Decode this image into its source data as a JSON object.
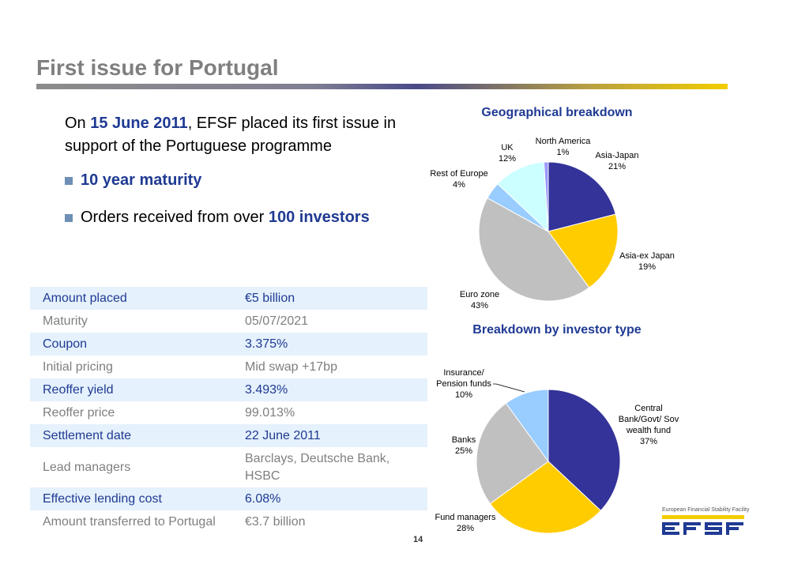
{
  "slide": {
    "title": "First issue for Portugal",
    "page_number": "14"
  },
  "intro": {
    "p1": "On ",
    "date": "15 June 2011",
    "p2": ", EFSF placed its first issue in support of the Portuguese programme"
  },
  "bullets": [
    {
      "plain": "",
      "bold": "10 year maturity"
    },
    {
      "plain": "Orders received from over ",
      "bold": "100 investors"
    }
  ],
  "terms": [
    {
      "label": "Amount placed",
      "value": "€5 billion"
    },
    {
      "label": "Maturity",
      "value": "05/07/2021"
    },
    {
      "label": "Coupon",
      "value": "3.375%"
    },
    {
      "label": "Initial pricing",
      "value": "Mid swap +17bp"
    },
    {
      "label": "Reoffer yield",
      "value": "3.493%"
    },
    {
      "label": "Reoffer price",
      "value": "99.013%"
    },
    {
      "label": "Settlement date",
      "value": "22 June 2011"
    },
    {
      "label": "Lead managers",
      "value": "Barclays, Deutsche Bank, HSBC"
    },
    {
      "label": "Effective lending cost",
      "value": "6.08%"
    },
    {
      "label": "Amount transferred to Portugal",
      "value": "€3.7 billion"
    }
  ],
  "logo": {
    "caption": "European Financial Stability Facility",
    "text": "EFSF"
  },
  "chart_data": [
    {
      "type": "pie",
      "title": "Geographical breakdown",
      "categories": [
        "Asia-Japan",
        "Asia-ex Japan",
        "Euro zone",
        "Rest of Europe",
        "UK",
        "North America"
      ],
      "values": [
        21,
        19,
        43,
        4,
        12,
        1
      ],
      "value_labels": [
        "21%",
        "19%",
        "43%",
        "4%",
        "12%",
        "1%"
      ],
      "colors": [
        "#333399",
        "#ffcc00",
        "#c0c0c0",
        "#99ccff",
        "#ccffff",
        "#9999ff"
      ],
      "start_angle_deg": 0,
      "direction": "clockwise"
    },
    {
      "type": "pie",
      "title": "Breakdown by investor type",
      "categories": [
        "Central Bank/Govt/ Sov wealth fund",
        "Fund managers",
        "Banks",
        "Insurance/ Pension  funds"
      ],
      "values": [
        37,
        28,
        25,
        10
      ],
      "value_labels": [
        "37%",
        "28%",
        "25%",
        "10%"
      ],
      "colors": [
        "#333399",
        "#ffcc00",
        "#c0c0c0",
        "#99ccff"
      ],
      "start_angle_deg": 0,
      "direction": "clockwise"
    }
  ]
}
